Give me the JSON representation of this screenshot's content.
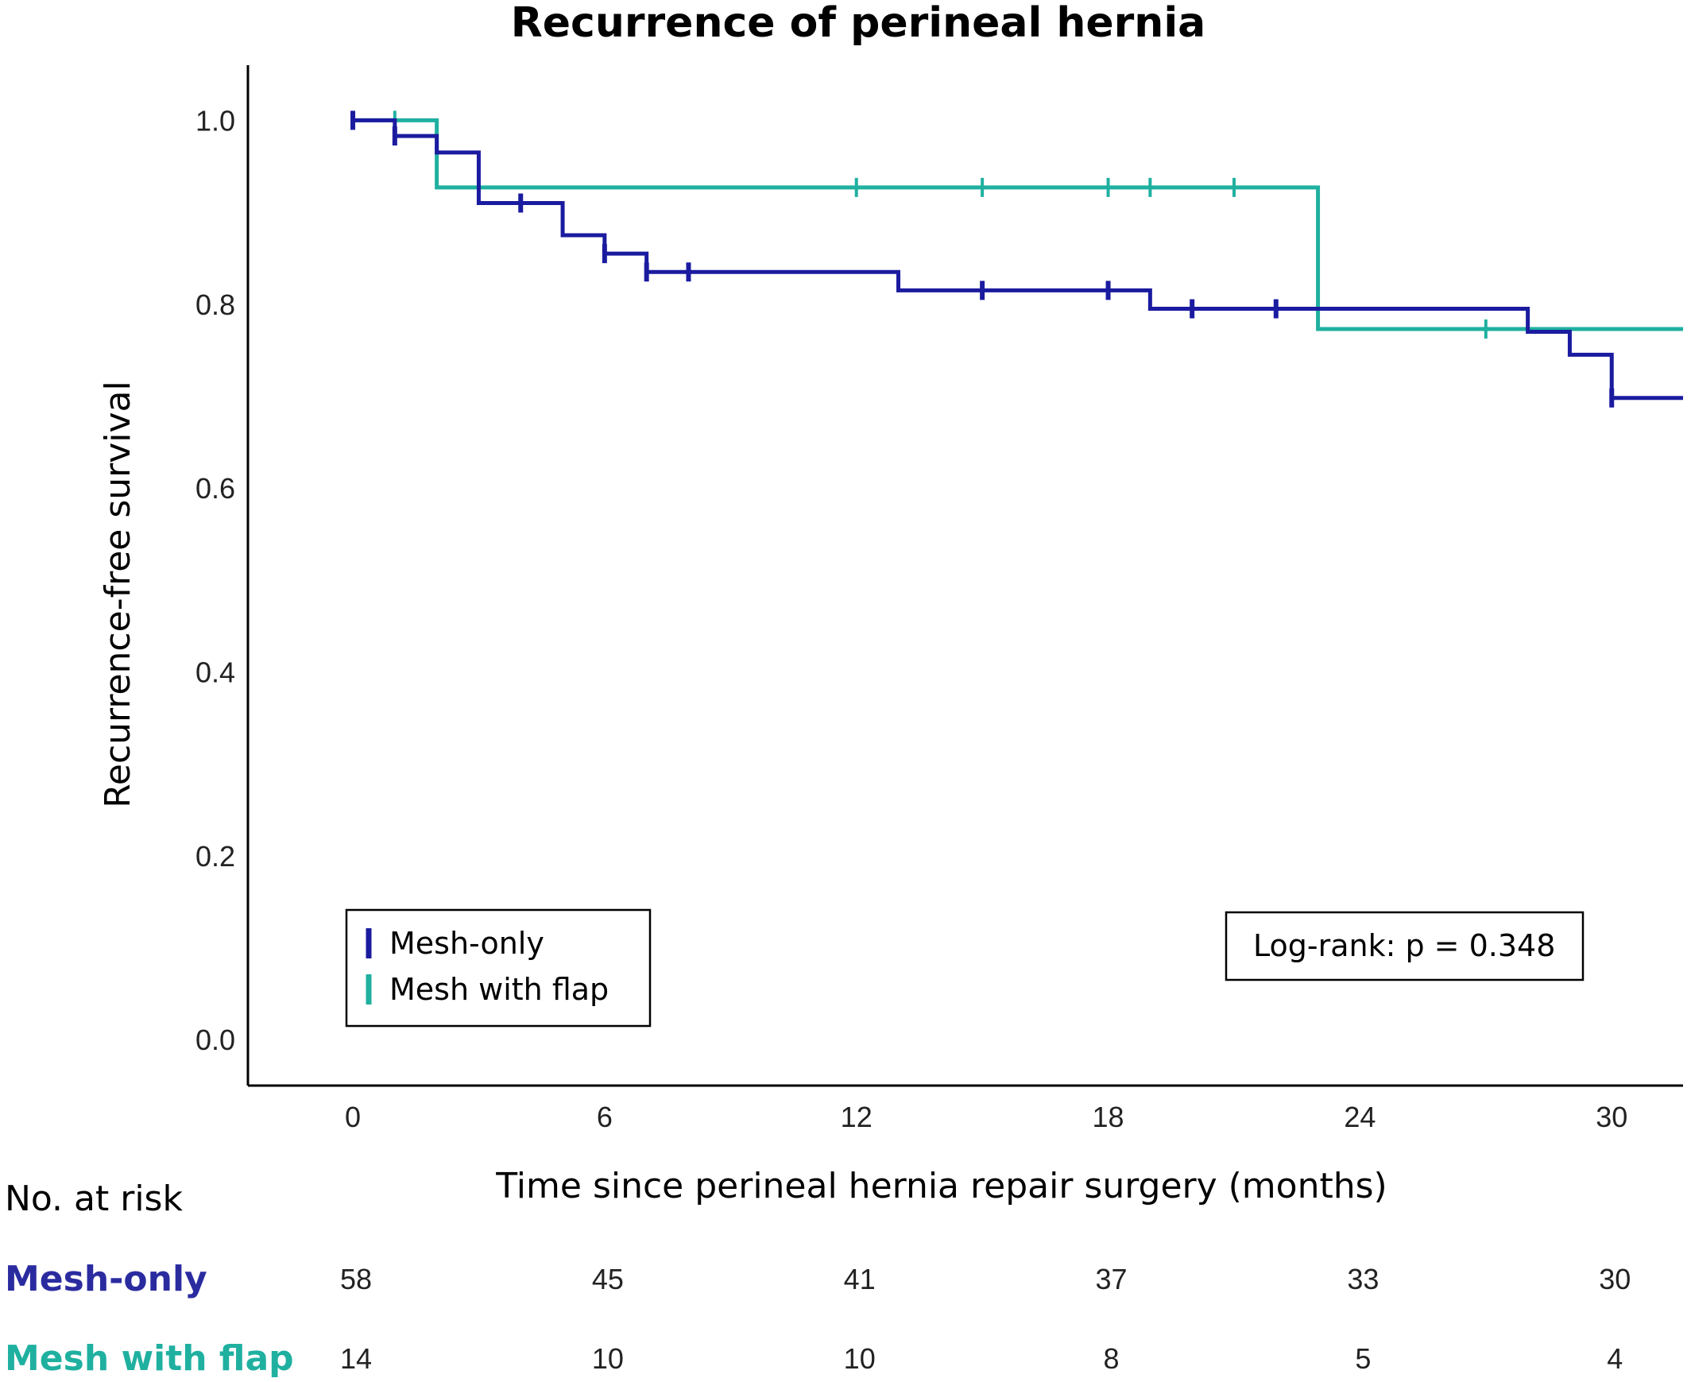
{
  "colors": {
    "mesh_only": "#1b1ba0",
    "mesh_flap": "#1fb0a0"
  },
  "chart_data": {
    "type": "line",
    "subtype": "kaplan-meier step",
    "title": "Recurrence of perineal hernia",
    "xlabel": "Time since perineal hernia repair surgery (months)",
    "ylabel": "Recurrence-free survival",
    "xlim": [
      -2.5,
      31.7
    ],
    "ylim": [
      -0.05,
      1.06
    ],
    "x_ticks": [
      "0",
      "6",
      "12",
      "18",
      "24",
      "30"
    ],
    "y_ticks": [
      "0.0",
      "0.2",
      "0.4",
      "0.6",
      "0.8",
      "1.0"
    ],
    "legend_position": "bottom-left",
    "series": [
      {
        "name": "Mesh-only",
        "steps": [
          [
            0,
            1.0
          ],
          [
            1,
            0.983
          ],
          [
            2,
            0.965
          ],
          [
            3,
            0.91
          ],
          [
            5,
            0.875
          ],
          [
            6,
            0.855
          ],
          [
            7,
            0.835
          ],
          [
            13,
            0.815
          ],
          [
            19,
            0.795
          ],
          [
            28,
            0.77
          ],
          [
            29,
            0.745
          ],
          [
            30,
            0.698
          ]
        ],
        "end_x": 31.7,
        "censored": [
          0,
          1,
          4,
          6,
          7,
          8,
          15,
          18,
          20,
          22,
          30
        ]
      },
      {
        "name": "Mesh with flap",
        "steps": [
          [
            0,
            1.0
          ],
          [
            2,
            0.927
          ],
          [
            23,
            0.773
          ]
        ],
        "end_x": 31.7,
        "censored": [
          1,
          12,
          15,
          18,
          19,
          21,
          27
        ]
      }
    ],
    "annotation": "Log-rank: p = 0.348"
  },
  "risk_table": {
    "title": "No. at risk",
    "times": [
      0,
      6,
      12,
      18,
      24,
      30
    ],
    "rows": [
      {
        "label": "Mesh-only",
        "values": [
          "58",
          "45",
          "41",
          "37",
          "33",
          "30"
        ]
      },
      {
        "label": "Mesh with flap",
        "values": [
          "14",
          "10",
          "10",
          "8",
          "5",
          "4"
        ]
      }
    ]
  }
}
